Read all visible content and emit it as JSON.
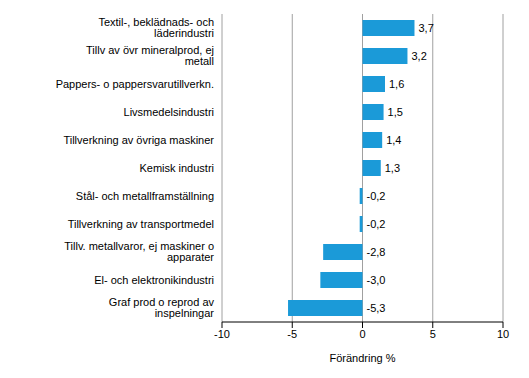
{
  "chart_data": {
    "type": "bar",
    "orientation": "horizontal",
    "categories": [
      "Textil-, beklädnads- och läderindustri",
      "Tillv av övr mineralprod, ej metall",
      "Pappers- o pappersvarutillverkn.",
      "Livsmedelsindustri",
      "Tillverkning av övriga maskiner",
      "Kemisk industri",
      "Stål- och metallframställning",
      "Tillverkning av transportmedel",
      "Tillv. metallvaror, ej maskiner o apparater",
      "El- och elektronikindustri",
      "Graf prod o reprod av inspelningar"
    ],
    "values": [
      3.7,
      3.2,
      1.6,
      1.5,
      1.4,
      1.3,
      -0.2,
      -0.2,
      -2.8,
      -3.0,
      -5.3
    ],
    "value_labels": [
      "3,7",
      "3,2",
      "1,6",
      "1,5",
      "1,4",
      "1,3",
      "-0,2",
      "-0,2",
      "-2,8",
      "-3,0",
      "-5,3"
    ],
    "color": "#1b9ad8",
    "x_label": "Förändring %",
    "xlim": [
      -10,
      10
    ],
    "xticks": [
      -10,
      -5,
      0,
      5,
      10
    ],
    "grid": true,
    "data_labels": true
  }
}
